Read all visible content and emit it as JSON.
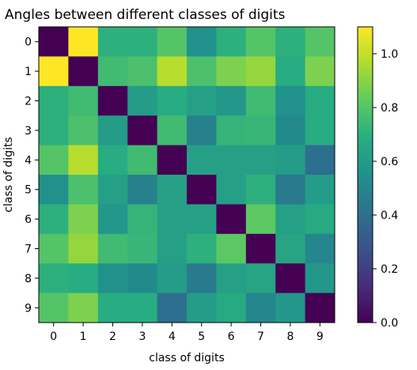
{
  "chart_data": {
    "type": "heatmap",
    "title": "Angles between different classes of digits",
    "xlabel": "class of digits",
    "ylabel": "class of digits",
    "x_categories": [
      "0",
      "1",
      "2",
      "3",
      "4",
      "5",
      "6",
      "7",
      "8",
      "9"
    ],
    "y_categories": [
      "0",
      "1",
      "2",
      "3",
      "4",
      "5",
      "6",
      "7",
      "8",
      "9"
    ],
    "values": [
      [
        0.0,
        1.1,
        0.7,
        0.7,
        0.8,
        0.55,
        0.7,
        0.8,
        0.7,
        0.8
      ],
      [
        1.1,
        0.0,
        0.75,
        0.78,
        0.98,
        0.78,
        0.88,
        0.92,
        0.68,
        0.88
      ],
      [
        0.7,
        0.75,
        0.0,
        0.6,
        0.68,
        0.62,
        0.58,
        0.75,
        0.55,
        0.68
      ],
      [
        0.7,
        0.78,
        0.6,
        0.0,
        0.75,
        0.48,
        0.72,
        0.73,
        0.52,
        0.68
      ],
      [
        0.8,
        0.98,
        0.68,
        0.75,
        0.0,
        0.62,
        0.62,
        0.62,
        0.6,
        0.4
      ],
      [
        0.55,
        0.78,
        0.62,
        0.48,
        0.62,
        0.0,
        0.62,
        0.7,
        0.45,
        0.6
      ],
      [
        0.7,
        0.88,
        0.58,
        0.72,
        0.62,
        0.62,
        0.0,
        0.82,
        0.62,
        0.67
      ],
      [
        0.8,
        0.92,
        0.75,
        0.73,
        0.62,
        0.7,
        0.82,
        0.0,
        0.64,
        0.5
      ],
      [
        0.7,
        0.68,
        0.55,
        0.52,
        0.6,
        0.45,
        0.62,
        0.64,
        0.0,
        0.58
      ],
      [
        0.8,
        0.88,
        0.68,
        0.68,
        0.4,
        0.6,
        0.67,
        0.5,
        0.58,
        0.0
      ]
    ],
    "colorbar": {
      "colormap": "viridis",
      "range": [
        0.0,
        1.1
      ],
      "ticks": [
        "0.0",
        "0.2",
        "0.4",
        "0.6",
        "0.8",
        "1.0"
      ],
      "tick_values": [
        0.0,
        0.2,
        0.4,
        0.6,
        0.8,
        1.0
      ]
    },
    "grid": false,
    "legend": "none"
  }
}
